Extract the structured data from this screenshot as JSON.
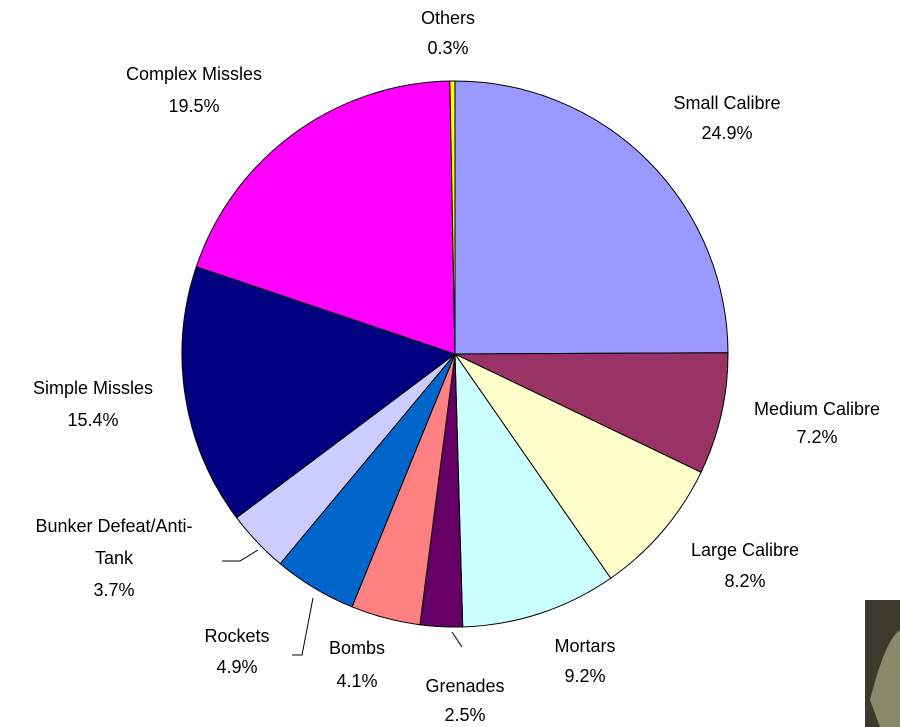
{
  "chart_data": {
    "type": "pie",
    "categories": [
      "Small Calibre",
      "Medium Calibre",
      "Large Calibre",
      "Mortars",
      "Grenades",
      "Bombs",
      "Rockets",
      "Bunker Defeat/Anti-Tank",
      "Simple Missles",
      "Complex Missles",
      "Others"
    ],
    "values": [
      24.9,
      7.2,
      8.2,
      9.2,
      2.5,
      4.1,
      4.9,
      3.7,
      15.4,
      19.5,
      0.3
    ],
    "value_labels": [
      "24.9%",
      "7.2%",
      "8.2%",
      "9.2%",
      "2.5%",
      "4.1%",
      "4.9%",
      "3.7%",
      "15.4%",
      "19.5%",
      "0.3%"
    ],
    "colors": [
      "#9999ff",
      "#993366",
      "#ffffcc",
      "#ccffff",
      "#660066",
      "#ff8080",
      "#0066cc",
      "#ccccff",
      "#000080",
      "#ff00ff",
      "#ffff00"
    ]
  }
}
